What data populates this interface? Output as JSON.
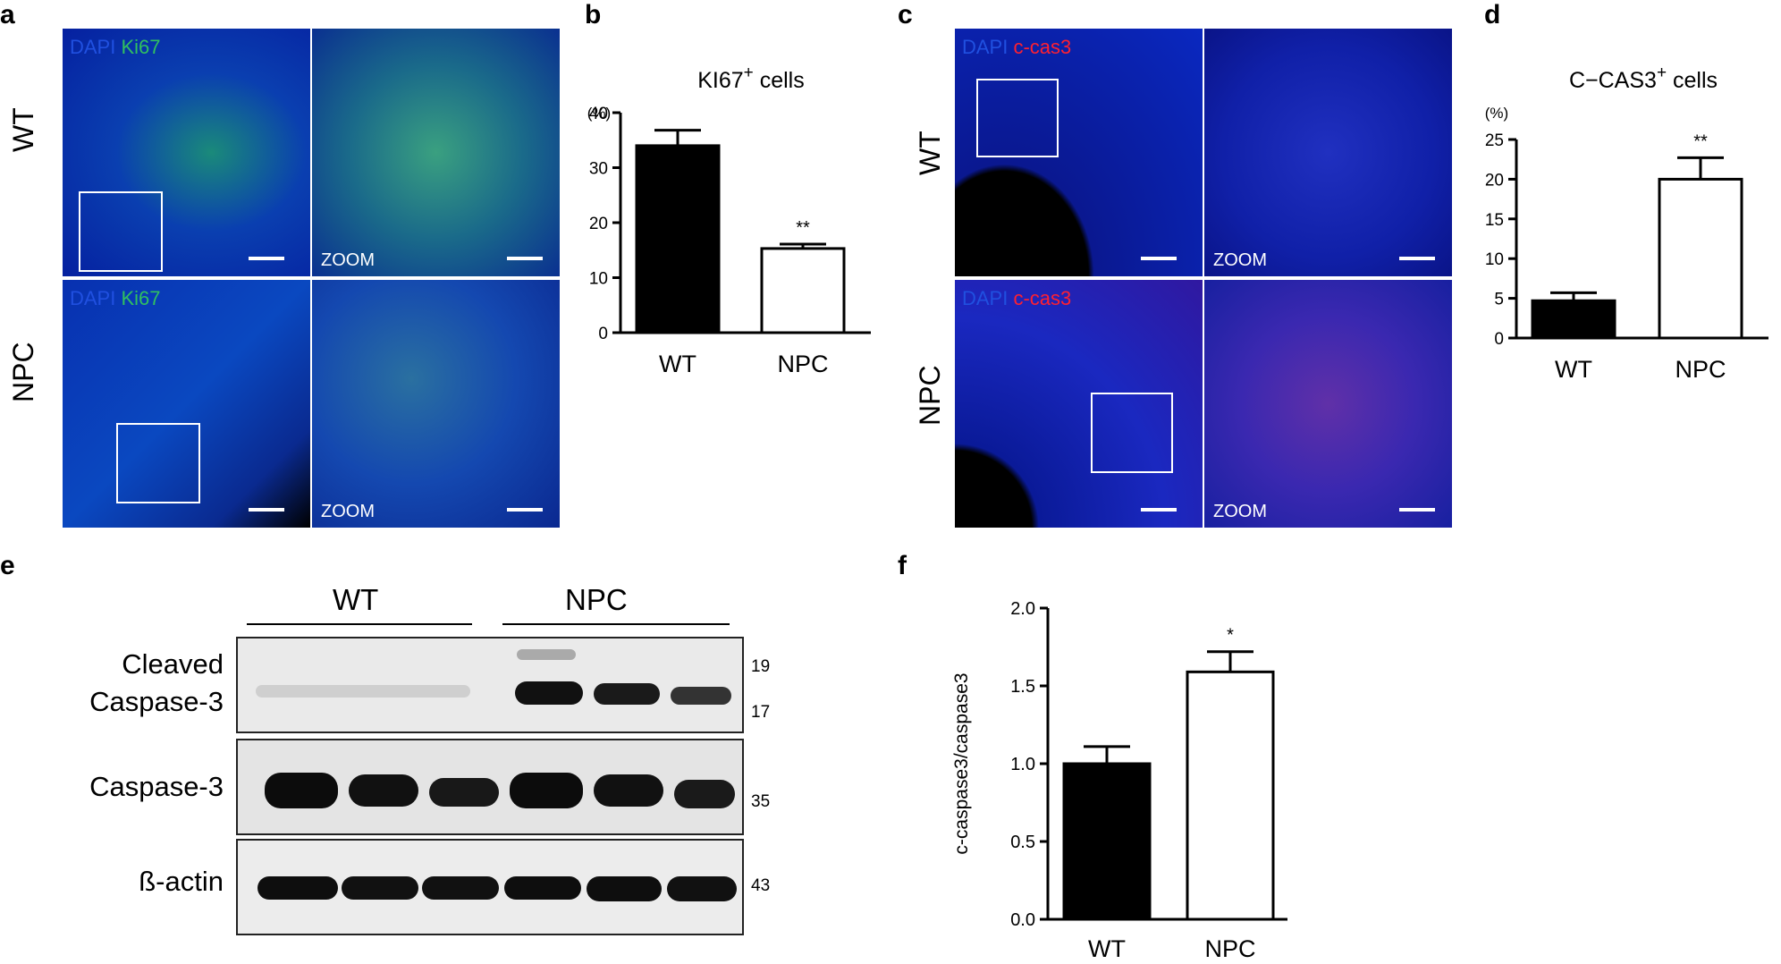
{
  "panels": {
    "a": "a",
    "b": "b",
    "c": "c",
    "d": "d",
    "e": "e",
    "f": "f"
  },
  "panel_a": {
    "row_labels": [
      "WT",
      "NPC"
    ],
    "stain_dapi": "DAPI",
    "stain_marker": "Ki67",
    "zoom": "ZOOM"
  },
  "panel_c": {
    "row_labels": [
      "WT",
      "NPC"
    ],
    "stain_dapi": "DAPI",
    "stain_marker": "c-cas3",
    "zoom": "ZOOM"
  },
  "panel_e": {
    "groups": [
      "WT",
      "NPC"
    ],
    "rows": [
      {
        "label_line1": "Cleaved",
        "label_line2": "Caspase-3",
        "mw_top": "19",
        "mw_bottom": "17"
      },
      {
        "label": "Caspase-3",
        "mw": "35"
      },
      {
        "label": "ß-actin",
        "mw": "43"
      }
    ]
  },
  "colors": {
    "black_bar": "#000000",
    "white_bar": "#ffffff",
    "dapi_blue": "#1030d0",
    "ki67_green": "#40e080",
    "cas3_red": "#ff2040"
  },
  "chart_data": [
    {
      "id": "b",
      "type": "bar",
      "title_main": "KI67",
      "title_sup": "+",
      "title_suffix": " cells",
      "unit": "(%)",
      "categories": [
        "WT",
        "NPC"
      ],
      "values": [
        34,
        15.3
      ],
      "errors": [
        2.8,
        0.8
      ],
      "significance": [
        "",
        "**"
      ],
      "ylim": [
        0,
        40
      ],
      "yticks": [
        0,
        10,
        20,
        30,
        40
      ]
    },
    {
      "id": "d",
      "type": "bar",
      "title_main": "C−CAS3",
      "title_sup": "+",
      "title_suffix": " cells",
      "unit": "(%)",
      "categories": [
        "WT",
        "NPC"
      ],
      "values": [
        4.7,
        20
      ],
      "errors": [
        1,
        2.7
      ],
      "significance": [
        "",
        "**"
      ],
      "ylim": [
        0,
        25
      ],
      "yticks": [
        0,
        5,
        10,
        15,
        20,
        25
      ]
    },
    {
      "id": "f",
      "type": "bar",
      "ylabel": "c-caspase3/caspase3",
      "categories": [
        "WT",
        "NPC"
      ],
      "values": [
        1.0,
        1.59
      ],
      "errors": [
        0.11,
        0.13
      ],
      "significance": [
        "",
        "*"
      ],
      "ylim": [
        0,
        2.0
      ],
      "yticks": [
        "0.0",
        "0.5",
        "1.0",
        "1.5",
        "2.0"
      ]
    }
  ]
}
